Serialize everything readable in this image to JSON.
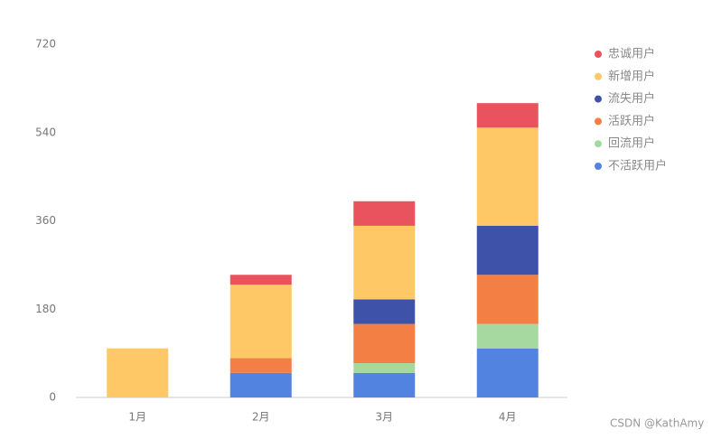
{
  "chart_data": {
    "type": "stacked_bar",
    "categories": [
      "1月",
      "2月",
      "3月",
      "4月"
    ],
    "series": [
      {
        "name": "不活跃用户",
        "color": "#5383e0",
        "values": [
          0,
          50,
          50,
          100
        ]
      },
      {
        "name": "回流用户",
        "color": "#a6d9a0",
        "values": [
          0,
          0,
          20,
          50
        ]
      },
      {
        "name": "活跃用户",
        "color": "#f47f45",
        "values": [
          0,
          30,
          80,
          100
        ]
      },
      {
        "name": "流失用户",
        "color": "#3d52a8",
        "values": [
          0,
          0,
          50,
          100
        ]
      },
      {
        "name": "新增用户",
        "color": "#fdc865",
        "values": [
          100,
          150,
          150,
          200
        ]
      },
      {
        "name": "忠诚用户",
        "color": "#e8535d",
        "values": [
          0,
          20,
          50,
          50
        ]
      }
    ],
    "ylim": [
      0,
      720
    ],
    "yticks": [
      0,
      180,
      360,
      540,
      720
    ],
    "grid": false,
    "legend": "right",
    "watermark": "CSDN @KathAmy"
  }
}
